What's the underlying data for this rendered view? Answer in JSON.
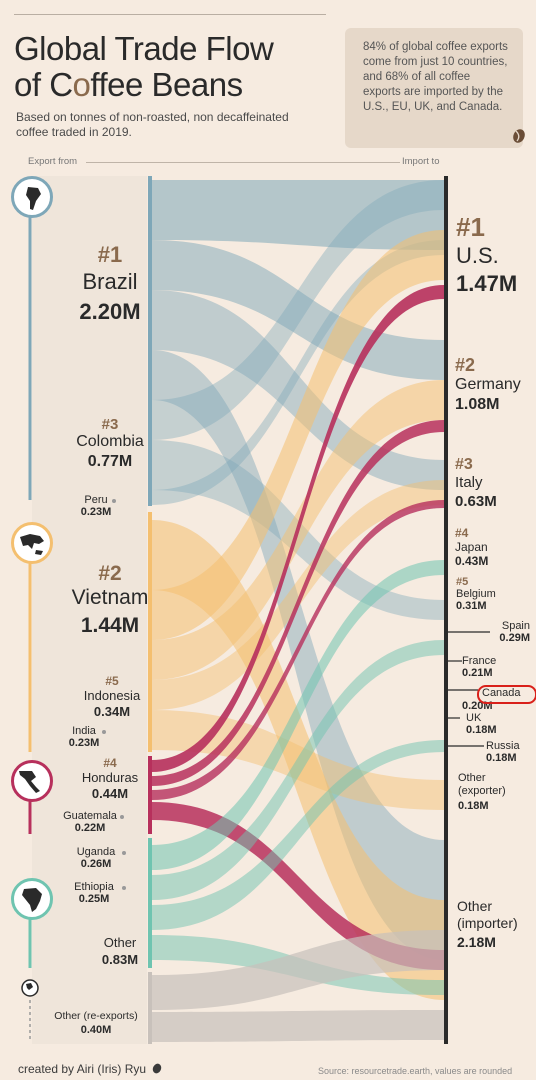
{
  "title_line1": "Global Trade Flow",
  "title_line2_prefix": "of C",
  "title_line2_suffix": "ffee Beans",
  "subtitle": "Based on tonnes of non-roasted, non decaffeinated coffee traded in 2019.",
  "callout": "84% of global coffee exports come from just 10 countries, and 68% of all coffee exports are imported by the U.S., EU, UK, and Canada.",
  "header_export": "Export from",
  "header_import": "Import to",
  "exporters": [
    {
      "rank": "#1",
      "name": "Brazil",
      "value": "2.20M"
    },
    {
      "rank": "#3",
      "name": "Colombia",
      "value": "0.77M"
    },
    {
      "rank": "",
      "name": "Peru",
      "value": "0.23M"
    },
    {
      "rank": "#2",
      "name": "Vietnam",
      "value": "1.44M"
    },
    {
      "rank": "#5",
      "name": "Indonesia",
      "value": "0.34M"
    },
    {
      "rank": "",
      "name": "India",
      "value": "0.23M"
    },
    {
      "rank": "#4",
      "name": "Honduras",
      "value": "0.44M"
    },
    {
      "rank": "",
      "name": "Guatemala",
      "value": "0.22M"
    },
    {
      "rank": "",
      "name": "Uganda",
      "value": "0.26M"
    },
    {
      "rank": "",
      "name": "Ethiopia",
      "value": "0.25M"
    },
    {
      "rank": "",
      "name": "Other",
      "value": "0.83M"
    },
    {
      "rank": "",
      "name": "Other (re-exports)",
      "value": "0.40M"
    }
  ],
  "importers": [
    {
      "rank": "#1",
      "name": "U.S.",
      "value": "1.47M"
    },
    {
      "rank": "#2",
      "name": "Germany",
      "value": "1.08M"
    },
    {
      "rank": "#3",
      "name": "Italy",
      "value": "0.63M"
    },
    {
      "rank": "#4",
      "name": "Japan",
      "value": "0.43M"
    },
    {
      "rank": "#5",
      "name": "Belgium",
      "value": "0.31M"
    },
    {
      "rank": "",
      "name": "Spain",
      "value": "0.29M"
    },
    {
      "rank": "",
      "name": "France",
      "value": "0.21M"
    },
    {
      "rank": "",
      "name": "Canada",
      "value": "0.20M"
    },
    {
      "rank": "",
      "name": "UK",
      "value": "0.18M"
    },
    {
      "rank": "",
      "name": "Russia",
      "value": "0.18M"
    },
    {
      "rank": "",
      "name": "Other (exporter)",
      "value": "0.18M"
    },
    {
      "rank": "",
      "name": "Other (importer)",
      "value": "2.18M"
    }
  ],
  "footer_left": "created by Airi (Iris) Ryu",
  "footer_right": "Source: resourcetrade.earth, values are rounded",
  "colors": {
    "south_america": "#7ea7b8",
    "asia": "#f4bf6f",
    "central_america": "#b7305c",
    "africa": "#6fc4b0",
    "other": "#c8c1bb",
    "accent": "#8a6a4d",
    "background": "#f6ebe0"
  },
  "icons": [
    "south-america-map-icon",
    "asia-map-icon",
    "central-america-map-icon",
    "africa-map-icon",
    "globe-icon",
    "coffee-bean-icon"
  ]
}
